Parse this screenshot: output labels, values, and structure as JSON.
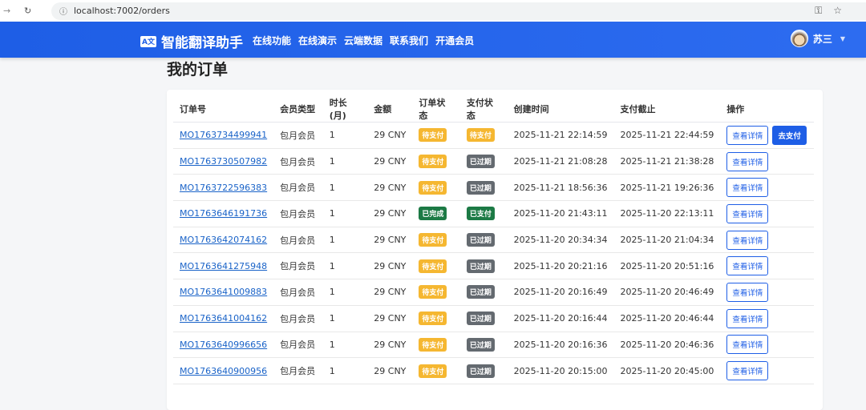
{
  "browser": {
    "url": "localhost:7002/orders"
  },
  "nav": {
    "brand": "智能翻译助手",
    "logo_text": "A文",
    "menu": [
      "在线功能",
      "在线演示",
      "云端数据",
      "联系我们",
      "开通会员"
    ],
    "user": "苏三"
  },
  "page": {
    "title": "我的订单"
  },
  "colors": {
    "primary": "#1e5ee6",
    "warning": "#f5b731",
    "secondary": "#646a70",
    "success": "#1c7a45"
  },
  "table": {
    "headers": [
      "订单号",
      "会员类型",
      "时长(月)",
      "金额",
      "订单状态",
      "支付状态",
      "创建时间",
      "支付截止",
      "操作"
    ],
    "detail_label": "查看详情",
    "pay_label": "去支付",
    "rows": [
      {
        "id": "MO1763734499941",
        "type": "包月会员",
        "months": "1",
        "amount": "29 CNY",
        "order_status": "待支付",
        "order_status_color": "warning",
        "pay_status": "待支付",
        "pay_status_color": "warning",
        "created": "2025-11-21 22:14:59",
        "deadline": "2025-11-21 22:44:59",
        "can_pay": true
      },
      {
        "id": "MO1763730507982",
        "type": "包月会员",
        "months": "1",
        "amount": "29 CNY",
        "order_status": "待支付",
        "order_status_color": "warning",
        "pay_status": "已过期",
        "pay_status_color": "secondary",
        "created": "2025-11-21 21:08:28",
        "deadline": "2025-11-21 21:38:28",
        "can_pay": false
      },
      {
        "id": "MO1763722596383",
        "type": "包月会员",
        "months": "1",
        "amount": "29 CNY",
        "order_status": "待支付",
        "order_status_color": "warning",
        "pay_status": "已过期",
        "pay_status_color": "secondary",
        "created": "2025-11-21 18:56:36",
        "deadline": "2025-11-21 19:26:36",
        "can_pay": false
      },
      {
        "id": "MO1763646191736",
        "type": "包月会员",
        "months": "1",
        "amount": "29 CNY",
        "order_status": "已完成",
        "order_status_color": "success",
        "pay_status": "已支付",
        "pay_status_color": "success",
        "created": "2025-11-20 21:43:11",
        "deadline": "2025-11-20 22:13:11",
        "can_pay": false
      },
      {
        "id": "MO1763642074162",
        "type": "包月会员",
        "months": "1",
        "amount": "29 CNY",
        "order_status": "待支付",
        "order_status_color": "warning",
        "pay_status": "已过期",
        "pay_status_color": "secondary",
        "created": "2025-11-20 20:34:34",
        "deadline": "2025-11-20 21:04:34",
        "can_pay": false
      },
      {
        "id": "MO1763641275948",
        "type": "包月会员",
        "months": "1",
        "amount": "29 CNY",
        "order_status": "待支付",
        "order_status_color": "warning",
        "pay_status": "已过期",
        "pay_status_color": "secondary",
        "created": "2025-11-20 20:21:16",
        "deadline": "2025-11-20 20:51:16",
        "can_pay": false
      },
      {
        "id": "MO1763641009883",
        "type": "包月会员",
        "months": "1",
        "amount": "29 CNY",
        "order_status": "待支付",
        "order_status_color": "warning",
        "pay_status": "已过期",
        "pay_status_color": "secondary",
        "created": "2025-11-20 20:16:49",
        "deadline": "2025-11-20 20:46:49",
        "can_pay": false
      },
      {
        "id": "MO1763641004162",
        "type": "包月会员",
        "months": "1",
        "amount": "29 CNY",
        "order_status": "待支付",
        "order_status_color": "warning",
        "pay_status": "已过期",
        "pay_status_color": "secondary",
        "created": "2025-11-20 20:16:44",
        "deadline": "2025-11-20 20:46:44",
        "can_pay": false
      },
      {
        "id": "MO1763640996656",
        "type": "包月会员",
        "months": "1",
        "amount": "29 CNY",
        "order_status": "待支付",
        "order_status_color": "warning",
        "pay_status": "已过期",
        "pay_status_color": "secondary",
        "created": "2025-11-20 20:16:36",
        "deadline": "2025-11-20 20:46:36",
        "can_pay": false
      },
      {
        "id": "MO1763640900956",
        "type": "包月会员",
        "months": "1",
        "amount": "29 CNY",
        "order_status": "待支付",
        "order_status_color": "warning",
        "pay_status": "已过期",
        "pay_status_color": "secondary",
        "created": "2025-11-20 20:15:00",
        "deadline": "2025-11-20 20:45:00",
        "can_pay": false
      }
    ]
  }
}
